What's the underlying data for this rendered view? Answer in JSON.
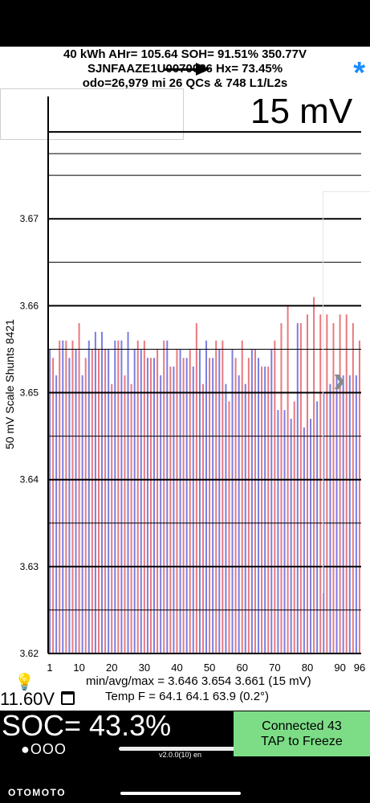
{
  "header": {
    "line1": "40 kWh  AHr= 105.64  SOH= 91.51%   350.77V",
    "line2": "SJNFAAZE1U0070036   Hx= 73.45%",
    "line3": "odo=26,979 mi 26 QCs & 748 L1/L2s"
  },
  "scale_label": "15 mV",
  "side_label": "50 mV Scale   Shunts 8421",
  "stats_line": "min/avg/max = 3.646 3.654 3.661  (15 mV)",
  "temp_line": "Temp F = 64.1  64.1  63.9  (0.2°)",
  "aux_voltage": "11.60V",
  "soc": "SOC= 43.3%",
  "dots": "●OOO",
  "connect_box": {
    "line1": "Connected 43",
    "line2": "TAP to Freeze"
  },
  "version": "v2.0.0(10) en",
  "watermark": "OTOMOTO",
  "icons": {
    "bulb": "lightbulb-icon",
    "calendar": "calendar-icon",
    "star": "bluetooth-star-icon",
    "chevron": "chevron-right-icon",
    "arrow": "arrow-right-icon"
  },
  "colors": {
    "odd_bar": "#7b7ee0",
    "even_bar": "#e8797f",
    "connect": "#7ddd87",
    "star": "#1a8cff"
  },
  "chart_data": {
    "type": "bar",
    "title": "",
    "xlabel": "",
    "ylabel": "50 mV Scale   Shunts 8421",
    "ylim": [
      3.62,
      3.685
    ],
    "yticks": [
      3.62,
      3.63,
      3.64,
      3.65,
      3.66,
      3.67
    ],
    "xticks": [
      1,
      10,
      20,
      30,
      40,
      50,
      60,
      70,
      80,
      90,
      96
    ],
    "grid": true,
    "categories": [
      1,
      2,
      3,
      4,
      5,
      6,
      7,
      8,
      9,
      10,
      11,
      12,
      13,
      14,
      15,
      16,
      17,
      18,
      19,
      20,
      21,
      22,
      23,
      24,
      25,
      26,
      27,
      28,
      29,
      30,
      31,
      32,
      33,
      34,
      35,
      36,
      37,
      38,
      39,
      40,
      41,
      42,
      43,
      44,
      45,
      46,
      47,
      48,
      49,
      50,
      51,
      52,
      53,
      54,
      55,
      56,
      57,
      58,
      59,
      60,
      61,
      62,
      63,
      64,
      65,
      66,
      67,
      68,
      69,
      70,
      71,
      72,
      73,
      74,
      75,
      76,
      77,
      78,
      79,
      80,
      81,
      82,
      83,
      84,
      85,
      86,
      87,
      88,
      89,
      90,
      91,
      92,
      93,
      94,
      95,
      96
    ],
    "series": [
      {
        "values": [
          3.655,
          3.654,
          3.652,
          3.656,
          3.656,
          3.656,
          3.654,
          3.656,
          3.655,
          3.658,
          3.652,
          3.654,
          3.656,
          3.655,
          3.657,
          3.655,
          3.657,
          3.655,
          3.655,
          3.651,
          3.656,
          3.656,
          3.656,
          3.652,
          3.657,
          3.651,
          3.655,
          3.656,
          3.655,
          3.656,
          3.654,
          3.654,
          3.654,
          3.655,
          3.652,
          3.656,
          3.656,
          3.653,
          3.653,
          3.655,
          3.655,
          3.654,
          3.654,
          3.655,
          3.653,
          3.658,
          3.655,
          3.651,
          3.656,
          3.654,
          3.654,
          3.656,
          3.655,
          3.656,
          3.651,
          3.649,
          3.655,
          3.654,
          3.652,
          3.656,
          3.651,
          3.654,
          3.655,
          3.655,
          3.654,
          3.653,
          3.653,
          3.653,
          3.655,
          3.656,
          3.648,
          3.658,
          3.648,
          3.66,
          3.647,
          3.649,
          3.658,
          3.658,
          3.646,
          3.659,
          3.647,
          3.661,
          3.649,
          3.659,
          3.65,
          3.659,
          3.651,
          3.658,
          3.652,
          3.659,
          3.652,
          3.659,
          3.652,
          3.658,
          3.652,
          3.656
        ]
      }
    ]
  }
}
